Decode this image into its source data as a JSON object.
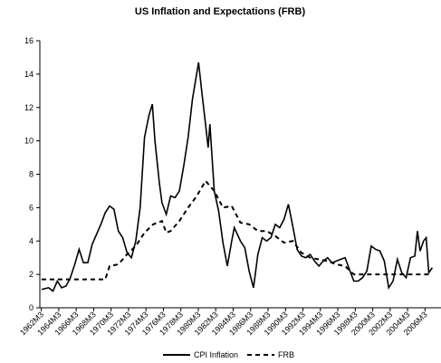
{
  "chart_data": {
    "type": "line",
    "title": "US Inflation and Expectations (FRB)",
    "xlim": [
      1962,
      2008
    ],
    "ylim": [
      0,
      16
    ],
    "yticks": [
      0,
      2,
      4,
      6,
      8,
      10,
      12,
      14,
      16
    ],
    "xticks": [
      {
        "value": 1962.17,
        "label": "1962M3"
      },
      {
        "value": 1964.17,
        "label": "1964M3"
      },
      {
        "value": 1966.17,
        "label": "1966M3"
      },
      {
        "value": 1968.17,
        "label": "1968M3"
      },
      {
        "value": 1970.17,
        "label": "1970M3"
      },
      {
        "value": 1972.17,
        "label": "1972M3"
      },
      {
        "value": 1974.17,
        "label": "1974M3"
      },
      {
        "value": 1976.17,
        "label": "1976M3"
      },
      {
        "value": 1978.17,
        "label": "1978M3"
      },
      {
        "value": 1980.17,
        "label": "1980M3"
      },
      {
        "value": 1982.17,
        "label": "1982M3"
      },
      {
        "value": 1984.17,
        "label": "1984M3"
      },
      {
        "value": 1986.17,
        "label": "1986M3"
      },
      {
        "value": 1988.17,
        "label": "1988M3"
      },
      {
        "value": 1990.17,
        "label": "1990M3"
      },
      {
        "value": 1992.17,
        "label": "1992M3"
      },
      {
        "value": 1994.17,
        "label": "1994M3"
      },
      {
        "value": 1996.17,
        "label": "1996M3"
      },
      {
        "value": 1998.17,
        "label": "1998M3"
      },
      {
        "value": 2000.17,
        "label": "2000M3"
      },
      {
        "value": 2002.17,
        "label": "2002M3"
      },
      {
        "value": 2004.17,
        "label": "2004M3"
      },
      {
        "value": 2006.17,
        "label": "2006M3"
      }
    ],
    "legend": "bottom",
    "series": [
      {
        "name": "CPI Inflation",
        "color": "#000000",
        "dash": "solid",
        "x": [
          1962.2,
          1963,
          1963.5,
          1964,
          1964.5,
          1965,
          1965.5,
          1966,
          1966.5,
          1967,
          1967.5,
          1968,
          1968.5,
          1969,
          1969.5,
          1970,
          1970.5,
          1971,
          1971.5,
          1972,
          1972.5,
          1973,
          1973.5,
          1974,
          1974.5,
          1974.9,
          1975.2,
          1975.7,
          1976,
          1976.5,
          1977,
          1977.5,
          1978,
          1978.5,
          1979,
          1979.5,
          1980.2,
          1980.6,
          1981,
          1981.3,
          1981.5,
          1982,
          1982.5,
          1983,
          1983.5,
          1984,
          1984.3,
          1985,
          1985.5,
          1986,
          1986.5,
          1987,
          1987.5,
          1988,
          1988.5,
          1989,
          1989.5,
          1990,
          1990.5,
          1991,
          1991.5,
          1992,
          1992.5,
          1993,
          1993.5,
          1994,
          1994.5,
          1995,
          1995.5,
          1996,
          1996.5,
          1997,
          1997.5,
          1998,
          1998.5,
          1999,
          1999.5,
          2000,
          2000.5,
          2001,
          2001.5,
          2002,
          2002.5,
          2003,
          2003.5,
          2004,
          2004.5,
          2005,
          2005.3,
          2005.6,
          2006,
          2006.3,
          2006.6,
          2007
        ],
        "values": [
          1.1,
          1.2,
          1.0,
          1.6,
          1.2,
          1.3,
          1.8,
          2.6,
          3.5,
          2.7,
          2.7,
          3.8,
          4.4,
          5.0,
          5.7,
          6.1,
          5.9,
          4.6,
          4.2,
          3.3,
          3.0,
          4.0,
          6.0,
          10.2,
          11.5,
          12.2,
          10.0,
          7.5,
          6.3,
          5.6,
          6.7,
          6.6,
          7.0,
          8.5,
          10.2,
          12.5,
          14.7,
          12.8,
          11.0,
          9.6,
          11.0,
          7.0,
          5.8,
          3.9,
          2.5,
          4.0,
          4.8,
          4.0,
          3.6,
          2.2,
          1.2,
          3.2,
          4.2,
          4.0,
          4.2,
          5.0,
          4.8,
          5.3,
          6.2,
          4.9,
          3.5,
          3.1,
          3.0,
          3.2,
          2.8,
          2.5,
          2.8,
          3.0,
          2.7,
          2.8,
          2.9,
          3.0,
          2.3,
          1.6,
          1.6,
          1.8,
          2.2,
          3.7,
          3.5,
          3.4,
          2.8,
          1.2,
          1.6,
          2.9,
          2.1,
          1.8,
          3.0,
          3.1,
          4.6,
          3.4,
          4.0,
          4.2,
          2.1,
          2.4
        ]
      },
      {
        "name": "FRB",
        "color": "#000000",
        "dash": "dashed",
        "x": [
          1962.2,
          1969.5,
          1970,
          1971,
          1972,
          1973,
          1974,
          1975,
          1976,
          1976.5,
          1977,
          1978,
          1979,
          1980,
          1981,
          1982,
          1983,
          1984,
          1985,
          1986,
          1987,
          1988,
          1989,
          1990,
          1991,
          1992,
          1993,
          1994,
          1995,
          1996,
          1997,
          1998,
          1999,
          2007
        ],
        "values": [
          1.7,
          1.7,
          2.5,
          2.6,
          3.2,
          3.7,
          4.5,
          5.0,
          5.2,
          4.5,
          4.6,
          5.2,
          6.0,
          6.7,
          7.6,
          7.0,
          6.0,
          6.1,
          5.1,
          5.0,
          4.6,
          4.6,
          4.3,
          3.9,
          4.0,
          3.3,
          3.0,
          2.9,
          2.8,
          2.6,
          2.5,
          2.0,
          2.0,
          2.0
        ]
      }
    ]
  }
}
